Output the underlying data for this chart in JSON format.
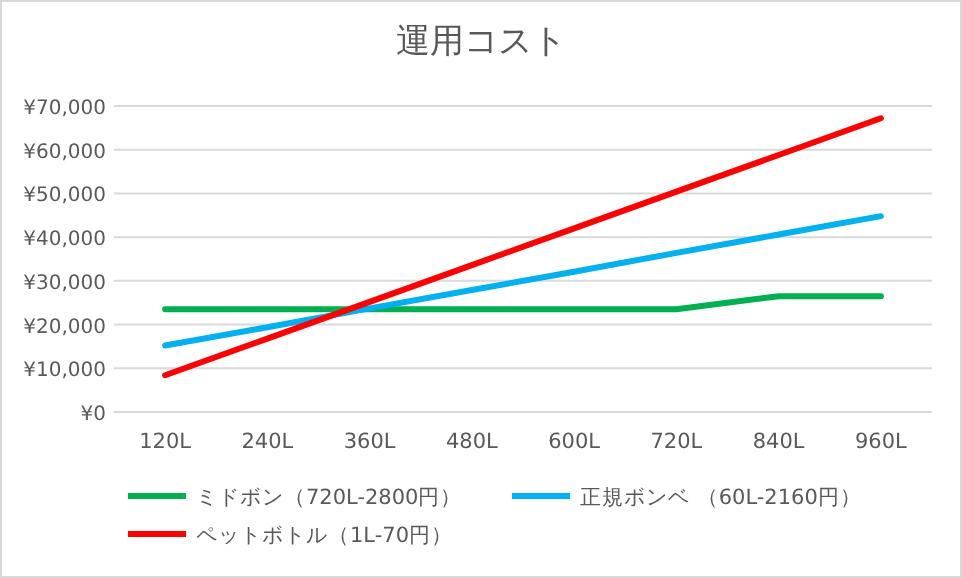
{
  "chart_data": {
    "type": "line",
    "title": "運用コスト",
    "categories": [
      "120L",
      "240L",
      "360L",
      "480L",
      "600L",
      "720L",
      "840L",
      "960L"
    ],
    "series": [
      {
        "name": "ミドボン（720L-2800円）",
        "color": "#00b050",
        "values": [
          23500,
          23500,
          23500,
          23500,
          23500,
          23500,
          26500,
          26500
        ]
      },
      {
        "name": "正規ボンベ （60L-2160円）",
        "color": "#00b0f0",
        "values": [
          15200,
          19400,
          23700,
          27900,
          32100,
          36400,
          40600,
          44800
        ]
      },
      {
        "name": "ペットボトル（1L-70円）",
        "color": "#ff0000",
        "values": [
          8400,
          16800,
          25200,
          33600,
          42000,
          50400,
          58800,
          67200
        ]
      }
    ],
    "ylim": [
      0,
      70000
    ],
    "yticks": [
      {
        "value": 0,
        "label": "¥0"
      },
      {
        "value": 10000,
        "label": "¥10,000"
      },
      {
        "value": 20000,
        "label": "¥20,000"
      },
      {
        "value": 30000,
        "label": "¥30,000"
      },
      {
        "value": 40000,
        "label": "¥40,000"
      },
      {
        "value": 50000,
        "label": "¥50,000"
      },
      {
        "value": 60000,
        "label": "¥60,000"
      },
      {
        "value": 70000,
        "label": "¥70,000"
      }
    ],
    "grid": "y",
    "legend": "bottom",
    "marker": "none",
    "line_style": "solid"
  }
}
